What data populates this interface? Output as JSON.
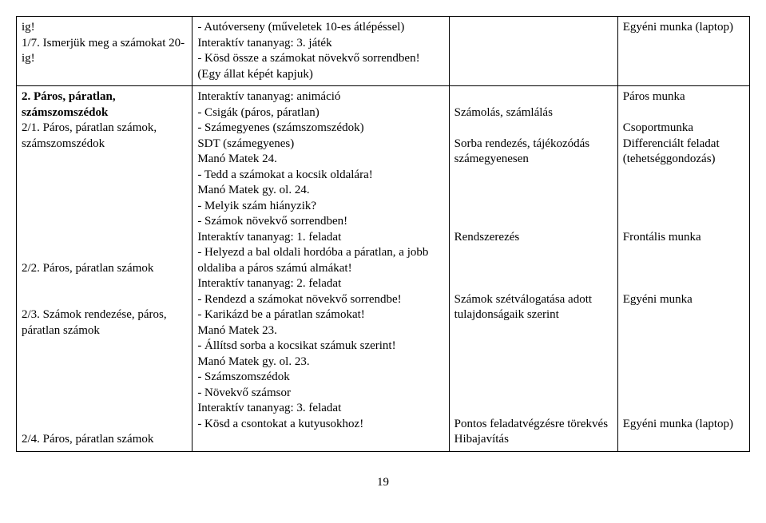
{
  "row1": {
    "c1": "ig!\n1/7. Ismerjük meg a számokat 20-ig!",
    "c2": "- Autóverseny (műveletek 10-es átlépéssel)\nInteraktív tananyag: 3. játék\n- Kösd össze a számokat növekvő sorrendben! (Egy állat képét kapjuk)",
    "c3": "",
    "c4": "Egyéni munka (laptop)"
  },
  "row2": {
    "c1_heading": "2. Páros, páratlan, számszomszédok",
    "c1_items": "2/1. Páros, páratlan számok, számszomszédok\n\n\n\n\n\n\n\n2/2. Páros, páratlan számok\n\n\n2/3. Számok rendezése, páros, páratlan számok\n\n\n\n\n\n\n2/4. Páros, páratlan számok",
    "c2": "Interaktív tananyag: animáció\n- Csigák (páros, páratlan)\n- Számegyenes (számszomszédok)\nSDT (számegyenes)\nManó Matek 24.\n- Tedd a számokat a kocsik oldalára!\nManó Matek gy. ol. 24.\n- Melyik szám hiányzik?\n- Számok növekvő sorrendben!\nInteraktív tananyag: 1. feladat\n- Helyezd a bal oldali hordóba a páratlan, a jobb oldaliba a páros számú almákat!\nInteraktív tananyag: 2. feladat\n- Rendezd a számokat növekvő sorrendbe!\n- Karikázd be a páratlan számokat!\nManó Matek 23.\n- Állítsd sorba a kocsikat számuk szerint!\nManó Matek gy. ol. 23.\n- Számszomszédok\n- Növekvő számsor\nInteraktív tananyag: 3. feladat\n- Kösd a csontokat a kutyusokhoz!",
    "c3": "\nSzámolás, számlálás\n\nSorba rendezés, tájékozódás számegyenesen\n\n\n\n\nRendszerezés\n\n\n\nSzámok szétválogatása adott tulajdonságaik szerint\n\n\n\n\n\n\nPontos feladatvégzésre törekvés\nHibajavítás",
    "c4": "Páros munka\n\nCsoportmunka\nDifferenciált feladat (tehetséggondozás)\n\n\n\n\nFrontális munka\n\n\n\nEgyéni munka\n\n\n\n\n\n\n\nEgyéni munka (laptop)"
  },
  "page_number": "19"
}
